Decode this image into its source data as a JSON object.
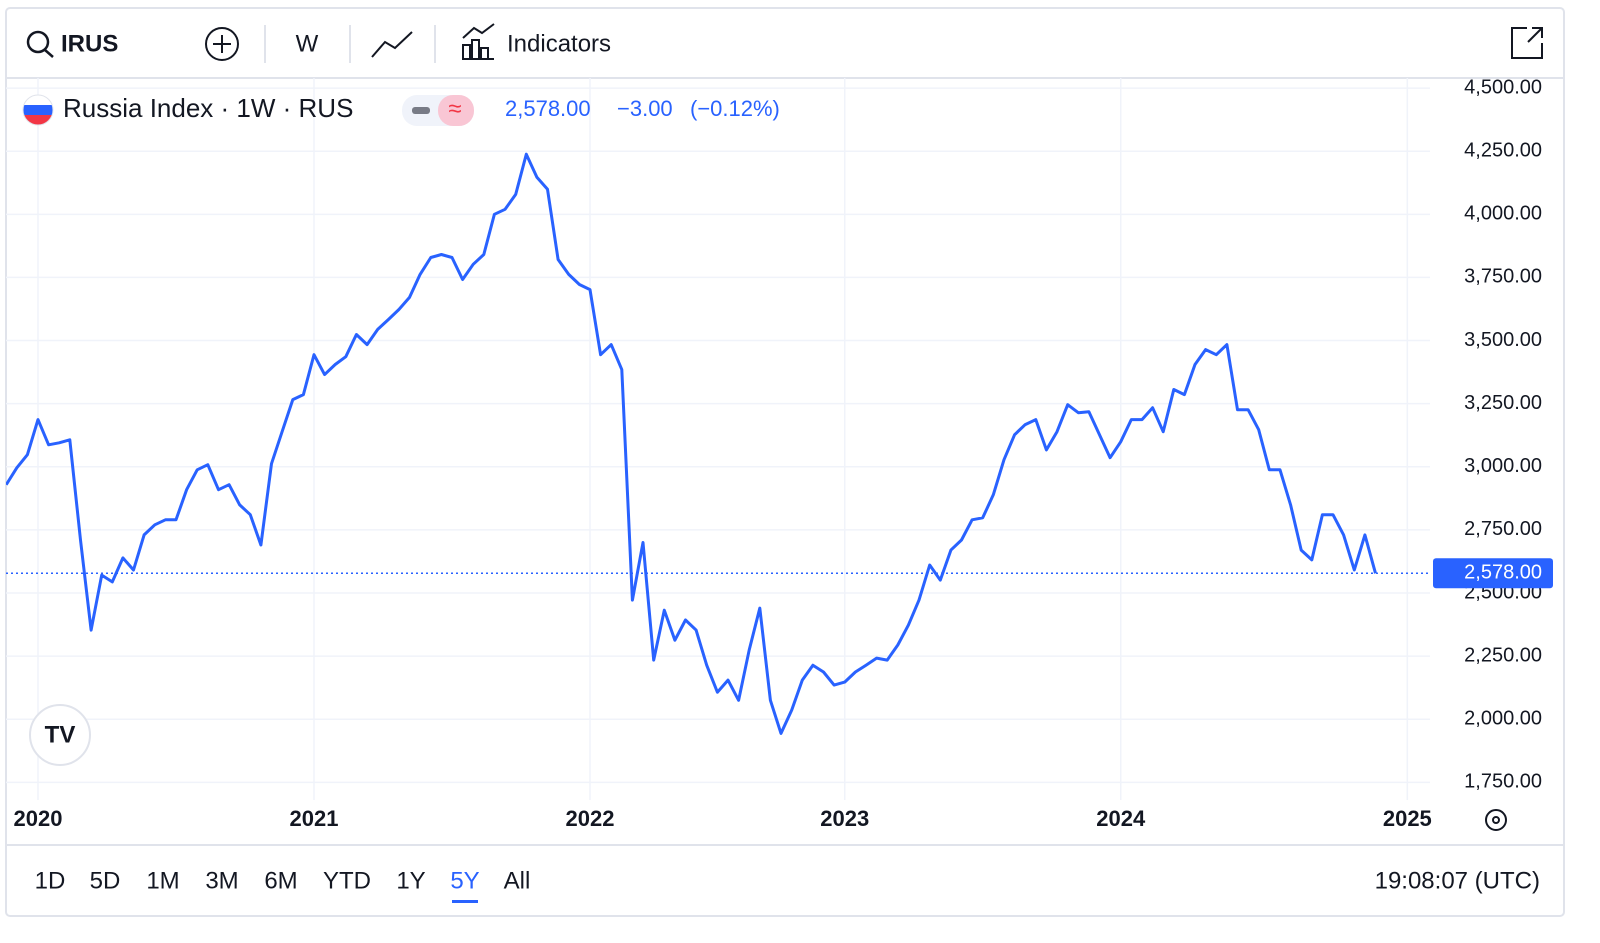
{
  "toolbar": {
    "symbol": "IRUS",
    "interval": "W",
    "indicators": "Indicators"
  },
  "legend": {
    "last": "2,578.00",
    "change": "−3.00",
    "change_pct": "(−0.12%)"
  },
  "chart_data": {
    "type": "line",
    "title": "Russia Index · 1W · RUS",
    "color": "#2962ff",
    "grid": true,
    "categories": [
      null,
      null,
      null,
      "2020",
      null,
      null,
      null,
      null,
      null,
      null,
      null,
      null,
      null,
      null,
      null,
      null,
      null,
      null,
      null,
      null,
      null,
      null,
      null,
      null,
      null,
      null,
      null,
      null,
      null,
      "2021",
      null,
      null,
      null,
      null,
      null,
      null,
      null,
      null,
      null,
      null,
      null,
      null,
      null,
      null,
      null,
      null,
      null,
      null,
      null,
      null,
      null,
      null,
      null,
      null,
      null,
      "2022",
      null,
      null,
      null,
      null,
      null,
      null,
      null,
      null,
      null,
      null,
      null,
      null,
      null,
      null,
      null,
      null,
      null,
      null,
      null,
      null,
      null,
      null,
      null,
      "2023",
      null,
      null,
      null,
      null,
      null,
      null,
      null,
      null,
      null,
      null,
      null,
      null,
      null,
      null,
      null,
      null,
      null,
      null,
      null,
      null,
      null,
      null,
      null,
      null,
      null,
      "2024",
      null,
      null,
      null,
      null,
      null,
      null,
      null,
      null,
      null,
      null,
      null,
      null,
      null,
      null,
      null,
      null,
      null,
      null,
      null,
      null,
      null,
      null,
      null,
      null,
      null,
      null,
      "2025"
    ],
    "values": [
      2929,
      2996,
      3048,
      3187,
      3087,
      3095,
      3107,
      2710,
      2353,
      2571,
      2544,
      2639,
      2591,
      2730,
      2770,
      2790,
      2790,
      2909,
      2988,
      3008,
      2909,
      2929,
      2849,
      2810,
      2690,
      3012,
      3139,
      3266,
      3286,
      3444,
      3365,
      3405,
      3436,
      3524,
      3484,
      3544,
      3583,
      3623,
      3671,
      3762,
      3829,
      3841,
      3829,
      3742,
      3802,
      3841,
      4000,
      4020,
      4079,
      4238,
      4147,
      4099,
      3821,
      3762,
      3722,
      3702,
      3444,
      3484,
      3385,
      2472,
      2700,
      2234,
      2432,
      2313,
      2393,
      2353,
      2214,
      2107,
      2155,
      2075,
      2274,
      2440,
      2075,
      1944,
      2036,
      2155,
      2214,
      2187,
      2135,
      2147,
      2187,
      2214,
      2242,
      2234,
      2294,
      2373,
      2472,
      2611,
      2551,
      2670,
      2710,
      2790,
      2798,
      2889,
      3028,
      3127,
      3167,
      3187,
      3067,
      3139,
      3246,
      3214,
      3218,
      3127,
      3036,
      3099,
      3187,
      3187,
      3234,
      3139,
      3306,
      3286,
      3405,
      3464,
      3444,
      3484,
      3226,
      3226,
      3147,
      2988,
      2988,
      2849,
      2670,
      2631,
      2810,
      2810,
      2730,
      2591,
      2730,
      2578,
      null,
      null,
      null
    ],
    "ylim": [
      1680,
      4540
    ],
    "yticks": [
      {
        "value": 1750,
        "label": "1,750.00"
      },
      {
        "value": 2000,
        "label": "2,000.00"
      },
      {
        "value": 2250,
        "label": "2,250.00"
      },
      {
        "value": 2500,
        "label": "2,500.00"
      },
      {
        "value": 2750,
        "label": "2,750.00"
      },
      {
        "value": 3000,
        "label": "3,000.00"
      },
      {
        "value": 3250,
        "label": "3,250.00"
      },
      {
        "value": 3500,
        "label": "3,500.00"
      },
      {
        "value": 3750,
        "label": "3,750.00"
      },
      {
        "value": 4000,
        "label": "4,000.00"
      },
      {
        "value": 4250,
        "label": "4,250.00"
      },
      {
        "value": 4500,
        "label": "4,500.00"
      }
    ],
    "price_line": {
      "value": 2578,
      "label": "2,578.00"
    }
  },
  "ranges": [
    "1D",
    "5D",
    "1M",
    "3M",
    "6M",
    "YTD",
    "1Y",
    "5Y",
    "All"
  ],
  "active_range": "5Y",
  "clock": "19:08:07 (UTC)"
}
